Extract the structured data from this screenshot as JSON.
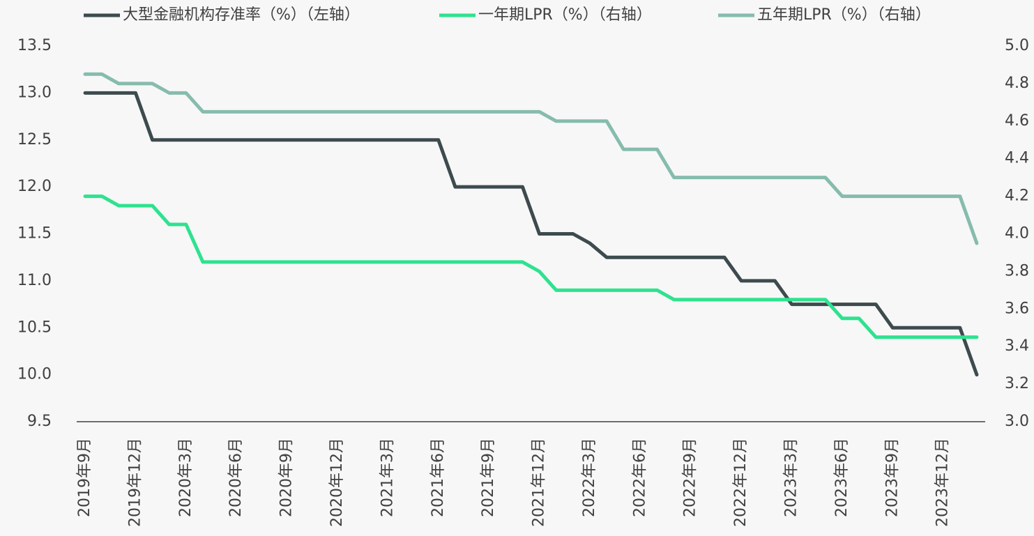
{
  "chart_data": {
    "type": "line",
    "categories": [
      "2019年9月",
      null,
      null,
      "2019年12月",
      null,
      null,
      "2020年3月",
      null,
      null,
      "2020年6月",
      null,
      null,
      "2020年9月",
      null,
      null,
      "2020年12月",
      null,
      null,
      "2021年3月",
      null,
      null,
      "2021年6月",
      null,
      null,
      "2021年9月",
      null,
      null,
      "2021年12月",
      null,
      null,
      "2022年3月",
      null,
      null,
      "2022年6月",
      null,
      null,
      "2022年9月",
      null,
      null,
      "2022年12月",
      null,
      null,
      "2023年3月",
      null,
      null,
      "2023年6月",
      null,
      null,
      "2023年9月",
      null,
      null,
      "2023年12月",
      null,
      null
    ],
    "series": [
      {
        "name": "大型金融机构存准率（%）（左轴）",
        "color": "#3d4b4e",
        "axis": "y",
        "values": [
          13,
          13,
          13,
          13,
          12.5,
          12.5,
          12.5,
          12.5,
          12.5,
          12.5,
          12.5,
          12.5,
          12.5,
          12.5,
          12.5,
          12.5,
          12.5,
          12.5,
          12.5,
          12.5,
          12.5,
          12.5,
          12,
          12,
          12,
          12,
          12,
          11.5,
          11.5,
          11.5,
          11.4,
          11.25,
          11.25,
          11.25,
          11.25,
          11.25,
          11.25,
          11.25,
          11.25,
          11,
          11,
          11,
          10.75,
          10.75,
          10.75,
          10.75,
          10.75,
          10.75,
          10.5,
          10.5,
          10.5,
          10.5,
          10.5,
          10
        ]
      },
      {
        "name": "一年期LPR（%）（右轴）",
        "color": "#2ee28f",
        "axis": "y2",
        "values": [
          4.2,
          4.2,
          4.15,
          4.15,
          4.15,
          4.05,
          4.05,
          3.85,
          3.85,
          3.85,
          3.85,
          3.85,
          3.85,
          3.85,
          3.85,
          3.85,
          3.85,
          3.85,
          3.85,
          3.85,
          3.85,
          3.85,
          3.85,
          3.85,
          3.85,
          3.85,
          3.85,
          3.8,
          3.7,
          3.7,
          3.7,
          3.7,
          3.7,
          3.7,
          3.7,
          3.65,
          3.65,
          3.65,
          3.65,
          3.65,
          3.65,
          3.65,
          3.65,
          3.65,
          3.65,
          3.55,
          3.55,
          3.45,
          3.45,
          3.45,
          3.45,
          3.45,
          3.45,
          3.45
        ]
      },
      {
        "name": "五年期LPR（%）（右轴）",
        "color": "#86bcad",
        "axis": "y2",
        "values": [
          4.85,
          4.85,
          4.8,
          4.8,
          4.8,
          4.75,
          4.75,
          4.65,
          4.65,
          4.65,
          4.65,
          4.65,
          4.65,
          4.65,
          4.65,
          4.65,
          4.65,
          4.65,
          4.65,
          4.65,
          4.65,
          4.65,
          4.65,
          4.65,
          4.65,
          4.65,
          4.65,
          4.65,
          4.6,
          4.6,
          4.6,
          4.6,
          4.45,
          4.45,
          4.45,
          4.3,
          4.3,
          4.3,
          4.3,
          4.3,
          4.3,
          4.3,
          4.3,
          4.3,
          4.3,
          4.2,
          4.2,
          4.2,
          4.2,
          4.2,
          4.2,
          4.2,
          4.2,
          3.95
        ]
      }
    ],
    "ylim": [
      9.5,
      13.5
    ],
    "yticks": [
      9.5,
      {
        "value": 10,
        "label": "10.0"
      },
      10.5,
      {
        "value": 11,
        "label": "11.0"
      },
      11.5,
      {
        "value": 12,
        "label": "12.0"
      },
      12.5,
      {
        "value": 13,
        "label": "13.0"
      },
      13.5
    ],
    "y2lim": [
      3,
      5
    ],
    "y2ticks": [
      {
        "value": 3,
        "label": "3.0"
      },
      3.2,
      3.4,
      3.6,
      3.8,
      {
        "value": 4,
        "label": "4.0"
      },
      4.2,
      4.4,
      4.6,
      4.8,
      {
        "value": 5,
        "label": "5.0"
      }
    ],
    "legend": "top",
    "grid": false
  }
}
